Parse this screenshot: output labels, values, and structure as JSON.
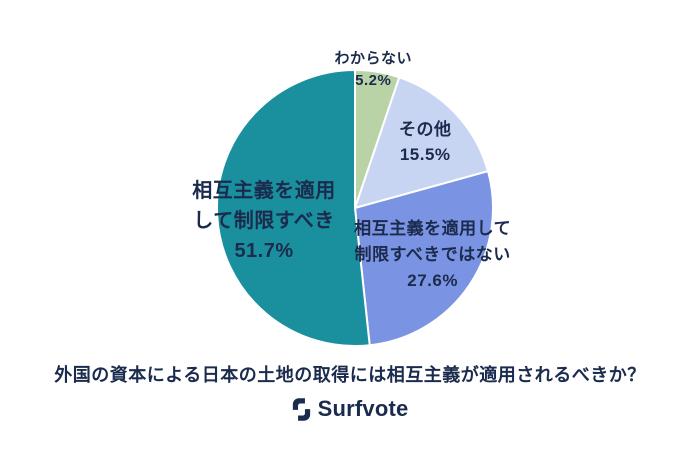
{
  "chart_data": {
    "type": "pie",
    "title": "外国の資本による日本の土地の取得には相互主義が適用されるべきか？",
    "total": 100,
    "start_angle_deg": 0,
    "direction": "clockwise",
    "label_color": "#1b2b4d",
    "slice_border_color": "#ffffff",
    "background": "#ffffff",
    "segments": [
      {
        "label": "わからない",
        "label_lines": [
          "わからない"
        ],
        "value": 5.2,
        "value_label": "5.2%",
        "color": "#b9d3a6",
        "label_placement": "outside-top"
      },
      {
        "label": "その他",
        "label_lines": [
          "その他"
        ],
        "value": 15.5,
        "value_label": "15.5%",
        "color": "#c8d5f2",
        "label_placement": "inside"
      },
      {
        "label": "相互主義を適用して制限すべきではない",
        "label_lines": [
          "相互主義を適用して",
          "制限すべきではない"
        ],
        "value": 27.6,
        "value_label": "27.6%",
        "color": "#7b93e3",
        "label_placement": "inside"
      },
      {
        "label": "相互主義を適用して制限すべき",
        "label_lines": [
          "相互主義を適用",
          "して制限すべき"
        ],
        "value": 51.7,
        "value_label": "51.7%",
        "color": "#1a8f9e",
        "label_placement": "inside"
      }
    ]
  },
  "footer": {
    "logo_text": "Surfvote"
  }
}
